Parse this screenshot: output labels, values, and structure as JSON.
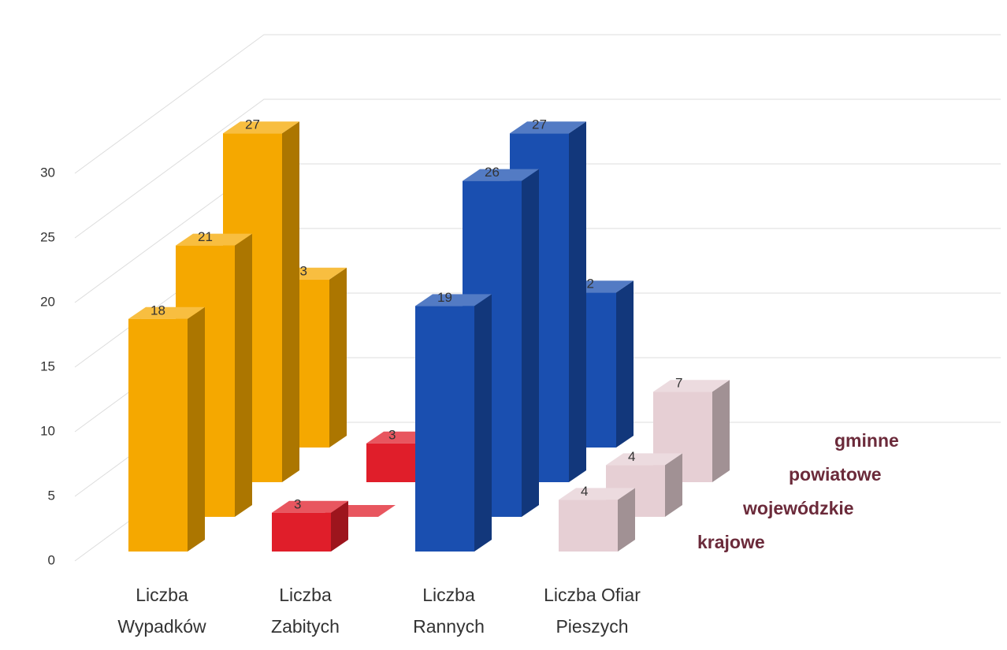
{
  "chart_data": {
    "type": "bar3d",
    "categories": [
      "Liczba Wypadków",
      "Liczba Zabitych",
      "Liczba Rannych",
      "Liczba Ofiar Pieszych"
    ],
    "category_colors": [
      "#f5a800",
      "#e01e2a",
      "#1a4fb0",
      "#e6cfd4"
    ],
    "series": [
      {
        "name": "krajowe",
        "values": [
          18,
          3,
          19,
          4
        ]
      },
      {
        "name": "wojewódzkie",
        "values": [
          21,
          0,
          26,
          4
        ]
      },
      {
        "name": "powiatowe",
        "values": [
          27,
          3,
          27,
          7
        ]
      },
      {
        "name": "gminne",
        "values": [
          13,
          null,
          12,
          null
        ]
      }
    ],
    "ylim": [
      0,
      35
    ],
    "yticks": [
      0,
      5,
      10,
      15,
      20,
      25,
      30
    ],
    "grid": true
  }
}
